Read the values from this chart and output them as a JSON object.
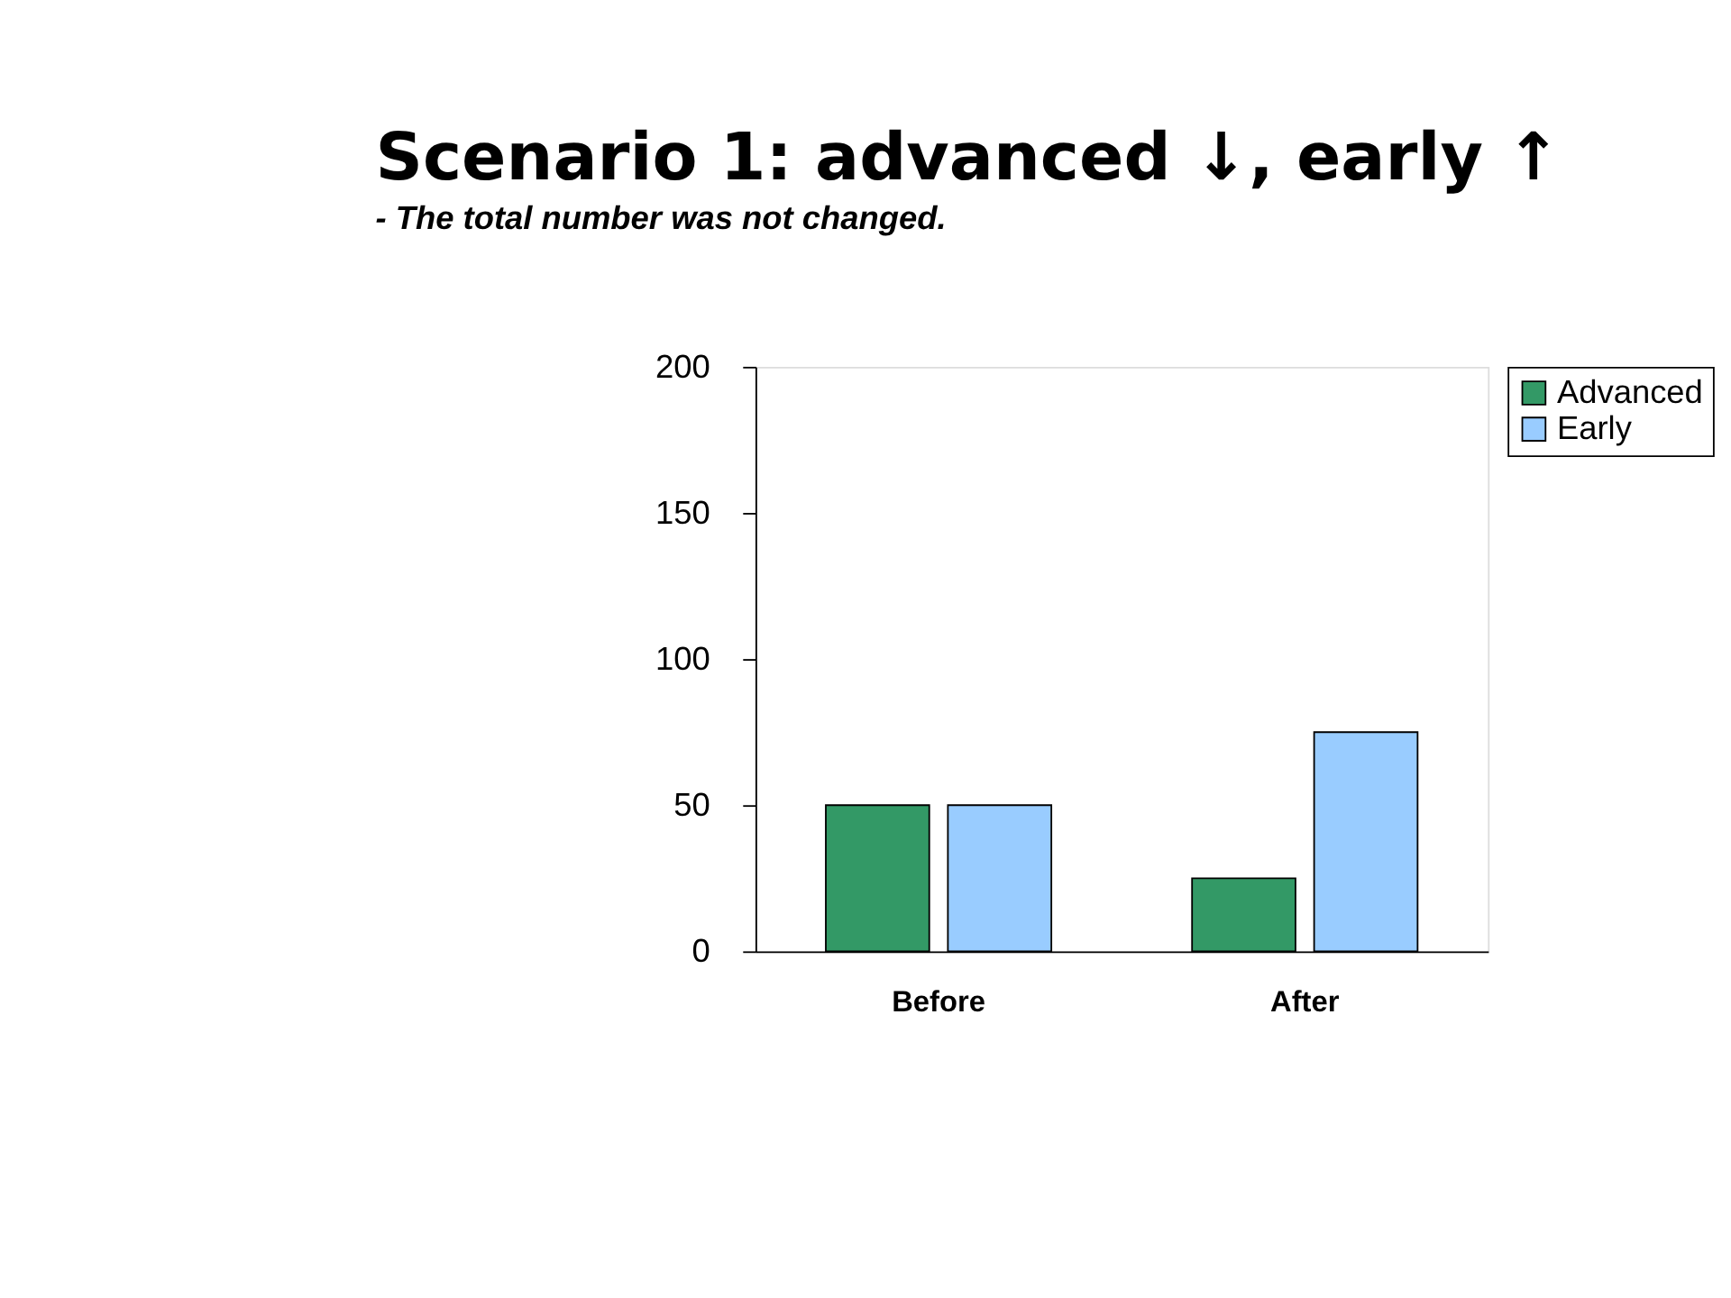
{
  "chart_data": {
    "type": "bar",
    "title": "Scenario 1: advanced ↓, early ↑",
    "subtitle": "- The total number was not changed.",
    "categories": [
      "Before",
      "After"
    ],
    "series": [
      {
        "name": "Advanced",
        "color": "#339966",
        "values": [
          50,
          25
        ]
      },
      {
        "name": "Early",
        "color": "#99ccff",
        "values": [
          50,
          75
        ]
      }
    ],
    "ylim": [
      0,
      200
    ],
    "yticks": [
      0,
      50,
      100,
      150,
      200
    ],
    "grid": false,
    "legend": "right"
  }
}
